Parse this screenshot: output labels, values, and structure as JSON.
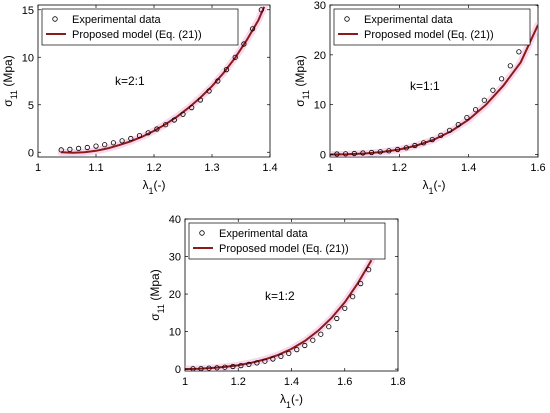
{
  "colors": {
    "model_line": "#8b1a1a",
    "marker": "#000000",
    "highlight": "#f2a6d8",
    "axis": "#000000"
  },
  "chart_data": [
    {
      "type": "line",
      "annotation": "k=2:1",
      "xlabel": "λ1(-)",
      "ylabel": "σ11 (Mpa)",
      "xlim": [
        1,
        1.4
      ],
      "ylim": [
        -0.5,
        15.5
      ],
      "xticks": [
        1,
        1.1,
        1.2,
        1.3,
        1.4
      ],
      "xtick_labels": [
        "1",
        "1.1",
        "1.2",
        "1.3",
        "1.4"
      ],
      "yticks": [
        0,
        5,
        10,
        15
      ],
      "ytick_labels": [
        "0",
        "5",
        "10",
        "15"
      ],
      "legend_position": "top-left",
      "grid": false,
      "series": [
        {
          "name": "Experimental data",
          "kind": "scatter",
          "marker": "circle",
          "x": [
            1.04,
            1.055,
            1.07,
            1.085,
            1.1,
            1.115,
            1.13,
            1.145,
            1.16,
            1.175,
            1.19,
            1.205,
            1.22,
            1.235,
            1.25,
            1.265,
            1.28,
            1.295,
            1.31,
            1.325,
            1.34,
            1.355,
            1.37,
            1.385
          ],
          "y": [
            0.25,
            0.3,
            0.4,
            0.5,
            0.65,
            0.8,
            1.0,
            1.2,
            1.45,
            1.75,
            2.05,
            2.45,
            2.9,
            3.4,
            4.0,
            4.7,
            5.5,
            6.45,
            7.5,
            8.7,
            10.0,
            11.4,
            13.0,
            15.0
          ]
        },
        {
          "name": "Proposed model (Eq. (21))",
          "kind": "line",
          "x": [
            1.04,
            1.06,
            1.08,
            1.1,
            1.12,
            1.14,
            1.16,
            1.18,
            1.2,
            1.22,
            1.24,
            1.26,
            1.28,
            1.3,
            1.32,
            1.34,
            1.36,
            1.38,
            1.39
          ],
          "y": [
            0,
            -0.05,
            0,
            0.15,
            0.4,
            0.75,
            1.15,
            1.65,
            2.25,
            2.95,
            3.75,
            4.7,
            5.75,
            6.95,
            8.35,
            9.95,
            11.8,
            13.9,
            15.3
          ]
        }
      ]
    },
    {
      "type": "line",
      "annotation": "k=1:1",
      "xlabel": "λ1(-)",
      "ylabel": "σ11 (Mpa)",
      "xlim": [
        1,
        1.6
      ],
      "ylim": [
        -0.5,
        30
      ],
      "xticks": [
        1,
        1.2,
        1.4,
        1.6
      ],
      "xtick_labels": [
        "1",
        "1.2",
        "1.4",
        "1.6"
      ],
      "yticks": [
        0,
        10,
        20,
        30
      ],
      "ytick_labels": [
        "0",
        "10",
        "20",
        "30"
      ],
      "legend_position": "top-left",
      "grid": false,
      "series": [
        {
          "name": "Experimental data",
          "kind": "scatter",
          "marker": "circle",
          "x": [
            1.02,
            1.045,
            1.07,
            1.095,
            1.12,
            1.145,
            1.17,
            1.195,
            1.22,
            1.245,
            1.27,
            1.295,
            1.32,
            1.345,
            1.37,
            1.395,
            1.42,
            1.445,
            1.47,
            1.495,
            1.52,
            1.545,
            1.57,
            1.6
          ],
          "y": [
            0.1,
            0.15,
            0.2,
            0.3,
            0.4,
            0.55,
            0.75,
            1.0,
            1.35,
            1.8,
            2.35,
            3.0,
            3.85,
            4.85,
            6.0,
            7.4,
            9.0,
            10.9,
            12.9,
            15.2,
            17.8,
            20.6,
            23.6,
            30.3
          ]
        },
        {
          "name": "Proposed model (Eq. (21))",
          "kind": "line",
          "x": [
            1.0,
            1.05,
            1.1,
            1.15,
            1.2,
            1.25,
            1.3,
            1.35,
            1.4,
            1.45,
            1.5,
            1.55,
            1.6
          ],
          "y": [
            0,
            0.05,
            0.2,
            0.5,
            1.0,
            1.8,
            3.0,
            4.7,
            7.0,
            10.0,
            13.8,
            18.5,
            26.0
          ]
        }
      ]
    },
    {
      "type": "line",
      "annotation": "k=1:2",
      "xlabel": "λ1(-)",
      "ylabel": "σ11 (Mpa)",
      "xlim": [
        1,
        1.8
      ],
      "ylim": [
        -0.5,
        40
      ],
      "xticks": [
        1,
        1.2,
        1.4,
        1.6,
        1.8
      ],
      "xtick_labels": [
        "1",
        "1.2",
        "1.4",
        "1.6",
        "1.8"
      ],
      "yticks": [
        0,
        10,
        20,
        30,
        40
      ],
      "ytick_labels": [
        "0",
        "10",
        "20",
        "30",
        "40"
      ],
      "legend_position": "top-left",
      "grid": false,
      "series": [
        {
          "name": "Experimental data",
          "kind": "scatter",
          "marker": "circle",
          "x": [
            1.03,
            1.06,
            1.09,
            1.12,
            1.15,
            1.18,
            1.21,
            1.24,
            1.27,
            1.3,
            1.33,
            1.36,
            1.39,
            1.42,
            1.45,
            1.48,
            1.51,
            1.54,
            1.57,
            1.6,
            1.63,
            1.66,
            1.69,
            1.72
          ],
          "y": [
            0.1,
            0.15,
            0.25,
            0.35,
            0.5,
            0.7,
            0.95,
            1.25,
            1.65,
            2.1,
            2.7,
            3.4,
            4.2,
            5.2,
            6.3,
            7.7,
            9.3,
            11.3,
            13.5,
            16.2,
            19.3,
            22.8,
            26.5,
            34.0
          ]
        },
        {
          "name": "Proposed model (Eq. (21))",
          "kind": "line",
          "x": [
            1.0,
            1.05,
            1.1,
            1.15,
            1.2,
            1.25,
            1.3,
            1.35,
            1.4,
            1.45,
            1.5,
            1.55,
            1.6,
            1.65,
            1.7
          ],
          "y": [
            0,
            0.1,
            0.3,
            0.6,
            1.05,
            1.7,
            2.6,
            3.8,
            5.4,
            7.5,
            10.2,
            13.6,
            17.8,
            23.0,
            29.0
          ]
        }
      ]
    }
  ]
}
